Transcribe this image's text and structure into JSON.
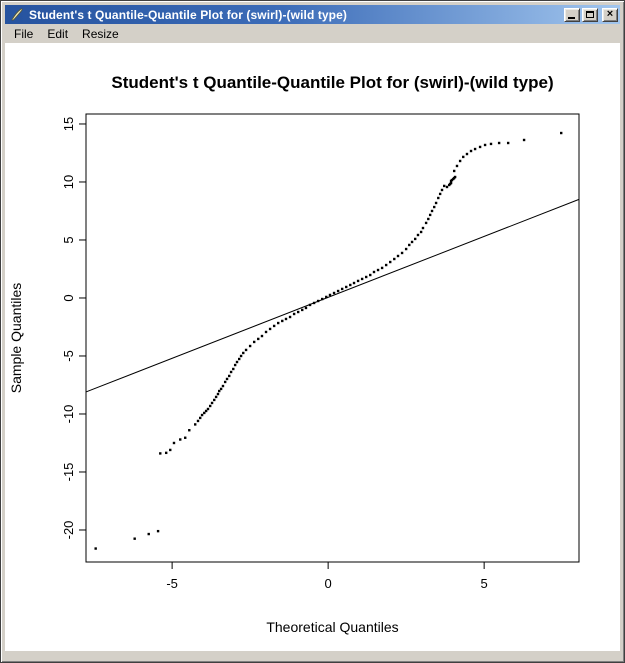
{
  "window": {
    "title": "Student's t Quantile-Quantile Plot for (swirl)-(wild type)",
    "icon": "r-graphics-device-icon",
    "controls": {
      "minimize_icon": "minimize-icon",
      "maximize_icon": "maximize-icon",
      "close_icon": "close-icon",
      "close_glyph": "×"
    }
  },
  "menu": {
    "items": [
      {
        "label": "File"
      },
      {
        "label": "Edit"
      },
      {
        "label": "Resize"
      }
    ]
  },
  "colors": {
    "titlebar_left": "#26539f",
    "titlebar_right": "#a2c6ee",
    "chrome": "#d4d0c8",
    "canvas": "#ffffff",
    "ink": "#000000"
  },
  "chart_data": {
    "type": "scatter",
    "title": "Student's t Quantile-Quantile Plot for (swirl)-(wild type)",
    "xlabel": "Theoretical Quantiles",
    "ylabel": "Sample Quantiles",
    "xlim": [
      -7.76,
      8.04
    ],
    "ylim": [
      -22.76,
      15.86
    ],
    "x_ticks": [
      -5,
      0,
      5
    ],
    "y_ticks": [
      15,
      10,
      5,
      0,
      -5,
      -10,
      -15,
      -20
    ],
    "grid": false,
    "box": true,
    "qq_line": {
      "x1": -7.76,
      "y1": -8.1,
      "x2": 8.04,
      "y2": 8.5
    },
    "points": [
      [
        -7.45,
        -21.6
      ],
      [
        -6.2,
        -20.75
      ],
      [
        -5.75,
        -20.35
      ],
      [
        -5.45,
        -20.1
      ],
      [
        -5.38,
        -13.4
      ],
      [
        -5.19,
        -13.35
      ],
      [
        -5.06,
        -13.1
      ],
      [
        -4.94,
        -12.5
      ],
      [
        -4.74,
        -12.2
      ],
      [
        -4.58,
        -12.05
      ],
      [
        -4.45,
        -11.4
      ],
      [
        -4.26,
        -10.9
      ],
      [
        -4.17,
        -10.6
      ],
      [
        -4.1,
        -10.34
      ],
      [
        -4.04,
        -10.09
      ],
      [
        -3.97,
        -9.91
      ],
      [
        -3.91,
        -9.74
      ],
      [
        -3.85,
        -9.57
      ],
      [
        -3.78,
        -9.31
      ],
      [
        -3.72,
        -9.05
      ],
      [
        -3.65,
        -8.79
      ],
      [
        -3.59,
        -8.53
      ],
      [
        -3.53,
        -8.28
      ],
      [
        -3.49,
        -8.02
      ],
      [
        -3.43,
        -7.84
      ],
      [
        -3.37,
        -7.59
      ],
      [
        -3.3,
        -7.24
      ],
      [
        -3.24,
        -6.98
      ],
      [
        -3.17,
        -6.72
      ],
      [
        -3.11,
        -6.38
      ],
      [
        -3.04,
        -6.12
      ],
      [
        -2.98,
        -5.78
      ],
      [
        -2.92,
        -5.52
      ],
      [
        -2.85,
        -5.26
      ],
      [
        -2.79,
        -5.0
      ],
      [
        -2.72,
        -4.74
      ],
      [
        -2.63,
        -4.48
      ],
      [
        -2.5,
        -4.14
      ],
      [
        -2.37,
        -3.79
      ],
      [
        -2.24,
        -3.53
      ],
      [
        -2.12,
        -3.28
      ],
      [
        -1.99,
        -2.93
      ],
      [
        -1.86,
        -2.67
      ],
      [
        -1.73,
        -2.41
      ],
      [
        -1.6,
        -2.16
      ],
      [
        -1.47,
        -1.98
      ],
      [
        -1.35,
        -1.81
      ],
      [
        -1.22,
        -1.64
      ],
      [
        -1.09,
        -1.38
      ],
      [
        -0.96,
        -1.21
      ],
      [
        -0.83,
        -1.03
      ],
      [
        -0.71,
        -0.86
      ],
      [
        -0.58,
        -0.6
      ],
      [
        -0.45,
        -0.43
      ],
      [
        -0.32,
        -0.26
      ],
      [
        -0.19,
        -0.09
      ],
      [
        -0.06,
        0.09
      ],
      [
        0.06,
        0.26
      ],
      [
        0.19,
        0.43
      ],
      [
        0.32,
        0.6
      ],
      [
        0.45,
        0.78
      ],
      [
        0.58,
        0.95
      ],
      [
        0.71,
        1.12
      ],
      [
        0.83,
        1.29
      ],
      [
        0.96,
        1.47
      ],
      [
        1.09,
        1.64
      ],
      [
        1.22,
        1.81
      ],
      [
        1.35,
        1.98
      ],
      [
        1.47,
        2.24
      ],
      [
        1.6,
        2.41
      ],
      [
        1.73,
        2.59
      ],
      [
        1.86,
        2.84
      ],
      [
        1.99,
        3.1
      ],
      [
        2.12,
        3.36
      ],
      [
        2.24,
        3.62
      ],
      [
        2.37,
        3.88
      ],
      [
        2.5,
        4.22
      ],
      [
        2.6,
        4.57
      ],
      [
        2.69,
        4.83
      ],
      [
        2.79,
        5.09
      ],
      [
        2.88,
        5.43
      ],
      [
        2.98,
        5.69
      ],
      [
        3.04,
        6.03
      ],
      [
        3.14,
        6.47
      ],
      [
        3.21,
        6.81
      ],
      [
        3.27,
        7.16
      ],
      [
        3.33,
        7.5
      ],
      [
        3.4,
        7.84
      ],
      [
        3.46,
        8.19
      ],
      [
        3.53,
        8.62
      ],
      [
        3.59,
        8.97
      ],
      [
        3.65,
        9.31
      ],
      [
        3.72,
        9.66
      ],
      [
        3.81,
        9.57
      ],
      [
        3.88,
        9.74
      ],
      [
        3.91,
        9.83
      ],
      [
        3.94,
        9.91
      ],
      [
        3.94,
        10.09
      ],
      [
        3.97,
        10.17
      ],
      [
        4.01,
        10.26
      ],
      [
        4.04,
        10.34
      ],
      [
        4.07,
        10.43
      ],
      [
        4.04,
        10.95
      ],
      [
        4.13,
        11.38
      ],
      [
        4.23,
        11.81
      ],
      [
        4.33,
        12.16
      ],
      [
        4.45,
        12.41
      ],
      [
        4.58,
        12.67
      ],
      [
        4.71,
        12.84
      ],
      [
        4.87,
        13.02
      ],
      [
        5.03,
        13.19
      ],
      [
        5.22,
        13.28
      ],
      [
        5.48,
        13.36
      ],
      [
        5.77,
        13.36
      ],
      [
        6.28,
        13.62
      ],
      [
        7.47,
        14.22
      ]
    ]
  }
}
